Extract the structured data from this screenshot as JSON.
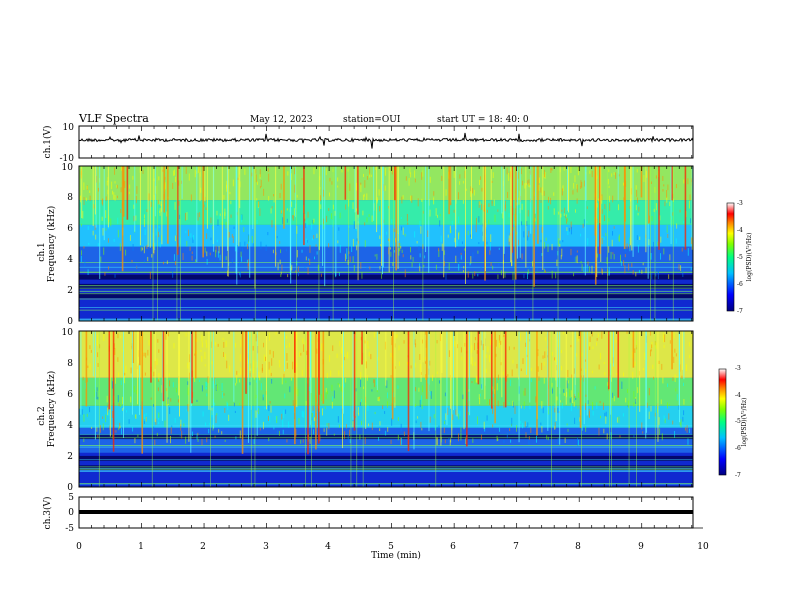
{
  "header": {
    "title": "VLF Spectra",
    "date": "May 12, 2023",
    "station": "station=OUI",
    "start": "start  UT =   18: 40: 0"
  },
  "colors": {
    "spectrogram": [
      "#00008b",
      "#0000ff",
      "#0080ff",
      "#00ffff",
      "#00ff80",
      "#7fff00",
      "#ffff00",
      "#ff8000",
      "#ff0000",
      "#ffffff"
    ],
    "trace": "#000000"
  },
  "chart_data": [
    {
      "type": "line",
      "ylabel": "ch.1(V)",
      "ylim": [
        -10,
        10
      ],
      "yticks": [
        "10",
        "-10"
      ],
      "xlim": [
        0,
        10
      ],
      "series": [
        {
          "values_summary": "noise around ~3 V with impulsive spikes"
        }
      ]
    },
    {
      "type": "heatmap",
      "ylabel": "Frequency (kHz)",
      "channel": "ch.1",
      "xlim": [
        0,
        10
      ],
      "ylim": [
        0,
        10
      ],
      "yticks": [
        "0",
        "2",
        "4",
        "6",
        "8",
        "10"
      ],
      "colorbar": {
        "label": "log(PSD)(V²/Hz)",
        "range": [
          -7,
          -3
        ],
        "ticks": [
          "-3",
          "-4",
          "-5",
          "-6",
          "-7"
        ]
      }
    },
    {
      "type": "heatmap",
      "ylabel": "Frequency (kHz)",
      "channel": "ch.2",
      "xlim": [
        0,
        10
      ],
      "ylim": [
        0,
        10
      ],
      "yticks": [
        "0",
        "2",
        "4",
        "6",
        "8",
        "10"
      ],
      "colorbar": {
        "label": "log(PSD)(V²/Hz)",
        "range": [
          -7,
          -3
        ],
        "ticks": [
          "-3",
          "-4",
          "-5",
          "-6",
          "-7"
        ]
      }
    },
    {
      "type": "line",
      "ylabel": "ch.3(V)",
      "ylim": [
        -5,
        5
      ],
      "yticks": [
        "5",
        "0",
        "-5"
      ],
      "xlim": [
        0,
        10
      ],
      "series": [
        {
          "values_summary": "flat at about -1.5 V"
        }
      ]
    }
  ],
  "xaxis": {
    "label": "Time (min)",
    "ticks": [
      "0",
      "1",
      "2",
      "3",
      "4",
      "5",
      "6",
      "7",
      "8",
      "9",
      "10"
    ]
  },
  "ch1_label": "ch.1",
  "ch2_label": "ch.2"
}
